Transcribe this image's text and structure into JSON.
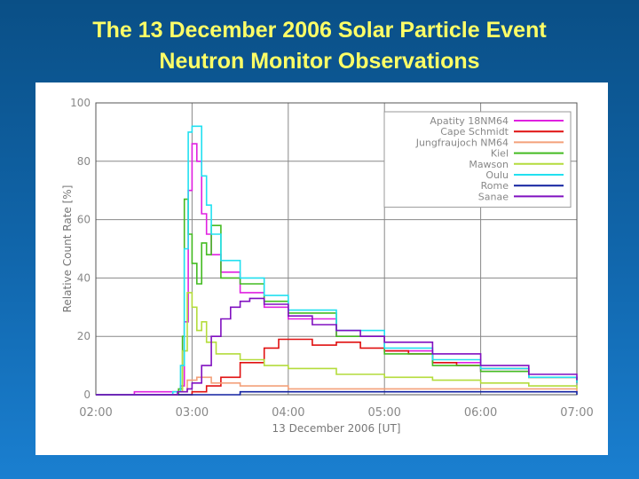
{
  "slide": {
    "title_line1": "The 13 December 2006 Solar Particle Event",
    "title_line2": "Neutron Monitor Observations"
  },
  "chart_data": {
    "type": "line",
    "xlabel": "13 December 2006 [UT]",
    "ylabel": "Relative Count Rate [%]",
    "xlim": [
      2.0,
      7.0
    ],
    "ylim": [
      0,
      100
    ],
    "x_ticks": [
      {
        "value": 2,
        "label": "02:00"
      },
      {
        "value": 3,
        "label": "03:00"
      },
      {
        "value": 4,
        "label": "04:00"
      },
      {
        "value": 5,
        "label": "05:00"
      },
      {
        "value": 6,
        "label": "06:00"
      },
      {
        "value": 7,
        "label": "07:00"
      }
    ],
    "y_ticks": [
      0,
      20,
      40,
      60,
      80,
      100
    ],
    "grid": true,
    "legend_position": "top-right",
    "series": [
      {
        "name": "Apatity 18NM64",
        "color": "#e020e0",
        "x": [
          2.0,
          2.4,
          2.8,
          2.88,
          2.92,
          2.96,
          3.0,
          3.05,
          3.1,
          3.15,
          3.2,
          3.3,
          3.5,
          3.75,
          4.0,
          4.5,
          5.0,
          5.5,
          6.0,
          6.5,
          7.0
        ],
        "y": [
          0,
          1,
          1,
          3,
          25,
          70,
          86,
          80,
          62,
          55,
          48,
          42,
          35,
          30,
          26,
          20,
          15,
          11,
          8,
          6,
          4
        ]
      },
      {
        "name": "Cape Schmidt",
        "color": "#e01010",
        "x": [
          2.0,
          2.8,
          3.0,
          3.15,
          3.3,
          3.5,
          3.75,
          3.9,
          4.0,
          4.25,
          4.5,
          4.75,
          5.0,
          5.25,
          5.5,
          5.75,
          6.0,
          6.5,
          7.0
        ],
        "y": [
          0,
          0,
          1,
          3,
          6,
          11,
          16,
          19,
          19,
          17,
          18,
          16,
          15,
          14,
          11,
          10,
          9,
          6,
          4
        ]
      },
      {
        "name": "Jungfraujoch NM64",
        "color": "#f3a07a",
        "x": [
          2.0,
          2.8,
          2.95,
          3.05,
          3.2,
          3.5,
          4.0,
          5.0,
          6.0,
          7.0
        ],
        "y": [
          0,
          1,
          5,
          6,
          4,
          3,
          2,
          2,
          2,
          1
        ]
      },
      {
        "name": "Kiel",
        "color": "#44bb22",
        "x": [
          2.0,
          2.8,
          2.86,
          2.9,
          2.92,
          2.96,
          3.0,
          3.05,
          3.1,
          3.15,
          3.2,
          3.3,
          3.5,
          3.75,
          4.0,
          4.5,
          5.0,
          5.5,
          6.0,
          6.5,
          7.0
        ],
        "y": [
          0,
          0,
          2,
          20,
          67,
          55,
          45,
          38,
          52,
          48,
          58,
          40,
          38,
          32,
          28,
          20,
          14,
          10,
          8,
          6,
          4
        ]
      },
      {
        "name": "Mawson",
        "color": "#b4dc3c",
        "x": [
          2.0,
          2.85,
          2.9,
          2.95,
          3.0,
          3.05,
          3.1,
          3.15,
          3.25,
          3.5,
          3.75,
          4.0,
          4.5,
          5.0,
          5.5,
          6.0,
          6.5,
          7.0
        ],
        "y": [
          0,
          1,
          15,
          35,
          30,
          22,
          25,
          18,
          14,
          12,
          10,
          9,
          7,
          6,
          5,
          4,
          3,
          2
        ]
      },
      {
        "name": "Oulu",
        "color": "#22e0f0",
        "x": [
          2.0,
          2.8,
          2.88,
          2.92,
          2.96,
          3.0,
          3.1,
          3.15,
          3.2,
          3.3,
          3.5,
          3.75,
          4.0,
          4.5,
          5.0,
          5.5,
          6.0,
          6.5,
          7.0
        ],
        "y": [
          0,
          1,
          10,
          50,
          90,
          92,
          75,
          65,
          55,
          46,
          40,
          34,
          29,
          22,
          16,
          12,
          9,
          6,
          4
        ]
      },
      {
        "name": "Rome",
        "color": "#1020a0",
        "x": [
          2.0,
          3.0,
          3.5,
          4.0,
          5.0,
          6.0,
          7.0
        ],
        "y": [
          0,
          0,
          1,
          1,
          1,
          1,
          0
        ]
      },
      {
        "name": "Sanae",
        "color": "#8010c0",
        "x": [
          2.0,
          2.85,
          2.95,
          3.0,
          3.1,
          3.2,
          3.3,
          3.4,
          3.5,
          3.6,
          3.75,
          4.0,
          4.25,
          4.5,
          4.75,
          5.0,
          5.5,
          6.0,
          6.5,
          7.0
        ],
        "y": [
          0,
          1,
          2,
          4,
          10,
          20,
          26,
          30,
          32,
          33,
          31,
          27,
          24,
          22,
          20,
          18,
          14,
          10,
          7,
          5
        ]
      }
    ]
  }
}
